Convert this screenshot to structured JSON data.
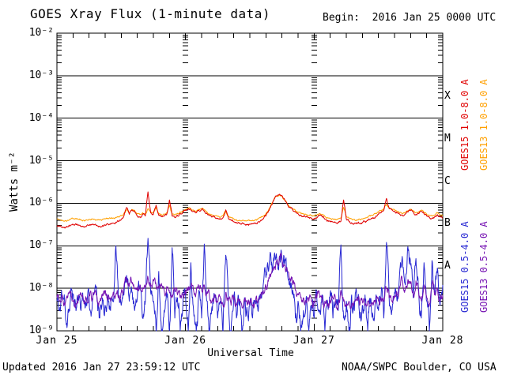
{
  "header": {
    "title": "GOES Xray Flux (1-minute data)",
    "begin_label": "Begin:  2016 Jan 25 0000 UTC"
  },
  "footer": {
    "updated": "Updated 2016 Jan 27 23:59:12 UTC",
    "source": "NOAA/SWPC Boulder, CO USA"
  },
  "chart_data": {
    "type": "line",
    "title": "GOES Xray Flux (1-minute data)",
    "xlabel": "Universal Time",
    "ylabel": "Watts m⁻²",
    "y_scale": "log",
    "y_range": [
      1e-09,
      0.01
    ],
    "y_tick_labels": [
      "10⁻²",
      "10⁻³",
      "10⁻⁴",
      "10⁻⁵",
      "10⁻⁶",
      "10⁻⁷",
      "10⁻⁸",
      "10⁻⁹"
    ],
    "y_tick_exponents": [
      -2,
      -3,
      -4,
      -5,
      -6,
      -7,
      -8,
      -9
    ],
    "x_range_hours": [
      0,
      72
    ],
    "x_start_utc": "2016 Jan 25 0000 UTC",
    "x_ticks": [
      {
        "hour": 0,
        "label": "Jan 25"
      },
      {
        "hour": 24,
        "label": "Jan 26"
      },
      {
        "hour": 48,
        "label": "Jan 27"
      },
      {
        "hour": 72,
        "label": "Jan 28"
      }
    ],
    "x_minor_tick_hours": 3,
    "grid": {
      "horizontal_decade_lines": true,
      "vertical_day_tick_columns_hours": [
        24,
        48
      ]
    },
    "flare_classes": [
      {
        "letter": "X",
        "flux_low": 0.0001,
        "flux_high": 0.001
      },
      {
        "letter": "M",
        "flux_low": 1e-05,
        "flux_high": 0.0001
      },
      {
        "letter": "C",
        "flux_low": 1e-06,
        "flux_high": 1e-05
      },
      {
        "letter": "B",
        "flux_low": 1e-07,
        "flux_high": 1e-06
      },
      {
        "letter": "A",
        "flux_low": 1e-08,
        "flux_high": 1e-07
      }
    ],
    "legend_position": "right-vertical",
    "legend": [
      {
        "text": "GOES15 1.0-8.0 A",
        "color": "#e00000",
        "column": 1,
        "row": "top"
      },
      {
        "text": "GOES13 1.0-8.0 A",
        "color": "#ffa000",
        "column": 2,
        "row": "top"
      },
      {
        "text": "GOES15 0.5-4.0 A",
        "color": "#2626d2",
        "column": 1,
        "row": "bottom"
      },
      {
        "text": "GOES13 0.5-4.0 A",
        "color": "#7512b2",
        "column": 2,
        "row": "bottom"
      }
    ],
    "series": [
      {
        "name": "GOES15 1.0-8.0 A",
        "color": "#e00000",
        "x_start": 0,
        "x_step": 0.5,
        "scale": 1e-07,
        "noise_log_amp": 0.035,
        "seed": 11,
        "values": [
          3.0,
          2.9,
          2.7,
          2.6,
          2.8,
          3.0,
          3.2,
          3.3,
          3.1,
          2.9,
          2.8,
          2.9,
          3.0,
          3.2,
          3.1,
          3.0,
          2.9,
          3.0,
          3.1,
          3.3,
          3.2,
          3.4,
          3.6,
          3.8,
          4.2,
          5.0,
          8.0,
          5.5,
          7.0,
          6.5,
          5.0,
          4.8,
          5.5,
          5.0,
          18.5,
          6.0,
          5.5,
          9.0,
          5.2,
          4.8,
          5.0,
          5.5,
          12.0,
          5.0,
          4.6,
          5.2,
          5.8,
          6.2,
          6.8,
          7.5,
          7.0,
          6.4,
          6.0,
          6.8,
          7.2,
          6.6,
          5.8,
          5.2,
          4.8,
          4.6,
          4.4,
          4.2,
          4.6,
          7.0,
          4.4,
          4.0,
          3.7,
          3.5,
          3.4,
          3.3,
          3.2,
          3.2,
          3.2,
          3.3,
          3.4,
          3.6,
          3.9,
          4.3,
          5.0,
          6.5,
          9.0,
          12.0,
          15.0,
          16.0,
          15.0,
          12.0,
          9.5,
          8.0,
          7.0,
          6.3,
          5.7,
          5.3,
          5.0,
          4.8,
          4.6,
          4.5,
          4.4,
          4.6,
          5.2,
          4.8,
          4.2,
          3.9,
          3.7,
          3.6,
          3.5,
          3.6,
          3.8,
          12.0,
          4.2,
          3.8,
          3.5,
          3.4,
          3.3,
          3.4,
          3.5,
          3.7,
          3.9,
          4.2,
          4.6,
          5.0,
          5.5,
          6.0,
          6.8,
          13.0,
          7.5,
          7.0,
          6.5,
          6.0,
          5.5,
          5.2,
          5.6,
          6.2,
          6.8,
          6.2,
          5.5,
          5.8,
          6.4,
          5.6,
          5.0,
          4.7,
          4.5,
          4.8,
          5.4,
          4.8,
          4.5
        ]
      },
      {
        "name": "GOES13 1.0-8.0 A",
        "color": "#ffa000",
        "x_start": 0,
        "x_step": 0.5,
        "scale": 1e-07,
        "noise_log_amp": 0.025,
        "seed": 22,
        "values": [
          4.2,
          4.1,
          4.0,
          3.9,
          4.0,
          4.2,
          4.3,
          4.4,
          4.2,
          4.1,
          4.0,
          4.1,
          4.2,
          4.3,
          4.2,
          4.1,
          4.1,
          4.2,
          4.3,
          4.4,
          4.4,
          4.5,
          4.6,
          4.8,
          5.2,
          5.8,
          7.0,
          6.0,
          7.2,
          6.8,
          5.6,
          5.4,
          6.0,
          5.6,
          7.5,
          6.2,
          6.0,
          8.0,
          5.8,
          5.4,
          5.6,
          6.0,
          9.0,
          5.6,
          5.2,
          5.8,
          6.3,
          6.6,
          7.2,
          7.8,
          7.4,
          6.8,
          6.4,
          7.2,
          7.5,
          7.0,
          6.2,
          5.6,
          5.3,
          5.1,
          4.9,
          4.7,
          5.1,
          6.5,
          4.9,
          4.6,
          4.3,
          4.1,
          4.0,
          3.9,
          3.9,
          3.9,
          3.9,
          4.0,
          4.1,
          4.3,
          4.6,
          5.0,
          5.7,
          7.0,
          9.5,
          12.5,
          14.5,
          15.5,
          14.5,
          11.8,
          9.6,
          8.2,
          7.3,
          6.7,
          6.2,
          5.8,
          5.6,
          5.4,
          5.2,
          5.1,
          5.0,
          5.2,
          5.7,
          5.4,
          4.9,
          4.6,
          4.4,
          4.3,
          4.2,
          4.3,
          4.5,
          8.0,
          4.9,
          4.5,
          4.3,
          4.2,
          4.1,
          4.2,
          4.3,
          4.5,
          4.7,
          5.0,
          5.3,
          5.7,
          6.1,
          6.6,
          7.3,
          9.5,
          7.9,
          7.4,
          7.0,
          6.5,
          6.0,
          5.7,
          6.1,
          6.7,
          7.2,
          6.7,
          6.0,
          6.3,
          6.9,
          6.1,
          5.5,
          5.2,
          5.0,
          5.3,
          5.9,
          5.3,
          5.0
        ]
      },
      {
        "name": "GOES15 0.5-4.0 A",
        "color": "#2626d2",
        "x_start": 0,
        "x_step": 0.5,
        "scale": 1e-09,
        "noise_log_amp": 0.32,
        "seed": 33,
        "values": [
          5,
          3,
          6,
          4,
          2,
          5,
          7,
          4,
          6,
          3,
          5,
          4,
          6,
          3,
          8,
          5,
          2,
          6,
          4,
          7,
          3,
          5,
          100,
          6,
          4,
          7,
          20,
          5,
          8,
          3,
          6,
          12,
          2,
          5,
          150,
          8,
          5,
          1,
          25,
          1,
          3,
          8,
          1,
          90,
          2,
          6,
          1,
          4,
          7,
          1,
          40,
          3,
          1,
          9,
          2,
          110,
          5,
          1,
          3,
          6,
          2,
          5,
          1,
          60,
          4,
          1,
          7,
          2,
          4,
          1,
          6,
          3,
          4,
          2,
          5,
          3,
          7,
          12,
          18,
          25,
          35,
          45,
          52,
          55,
          50,
          38,
          26,
          15,
          9,
          2,
          5,
          1,
          3,
          6,
          1,
          4,
          2,
          6,
          3,
          7,
          1,
          5,
          8,
          2,
          5,
          3,
          105,
          2,
          5,
          1,
          7,
          3,
          6,
          2,
          4,
          7,
          1,
          5,
          2,
          6,
          3,
          7,
          2,
          120,
          6,
          3,
          8,
          5,
          28,
          45,
          12,
          95,
          35,
          6,
          50,
          10,
          2,
          40,
          5,
          1,
          45,
          7,
          30,
          4,
          12
        ]
      },
      {
        "name": "GOES13 0.5-4.0 A",
        "color": "#7512b2",
        "x_start": 0,
        "x_step": 0.5,
        "scale": 1e-09,
        "noise_log_amp": 0.16,
        "seed": 44,
        "values": [
          6,
          5,
          7,
          4,
          6,
          8,
          5,
          4,
          6,
          7,
          5,
          6,
          7,
          5,
          8,
          6,
          5,
          7,
          9,
          6,
          5,
          8,
          7,
          6,
          8,
          10,
          15,
          11,
          14,
          10,
          9,
          12,
          10,
          11,
          18,
          13,
          16,
          12,
          10,
          13,
          9,
          11,
          8,
          7,
          9,
          7,
          6,
          7,
          8,
          9,
          11,
          9,
          8,
          10,
          9,
          12,
          8,
          6,
          5,
          7,
          5,
          6,
          4,
          8,
          5,
          4,
          6,
          4,
          5,
          4,
          5,
          4,
          5,
          4,
          5,
          5,
          6,
          9,
          12,
          16,
          22,
          32,
          44,
          50,
          45,
          36,
          26,
          17,
          12,
          9,
          7,
          6,
          6,
          5,
          5,
          5,
          5,
          6,
          7,
          6,
          5,
          4,
          5,
          6,
          5,
          4,
          9,
          5,
          4,
          5,
          4,
          5,
          6,
          4,
          5,
          4,
          5,
          4,
          4,
          5,
          5,
          6,
          5,
          10,
          6,
          5,
          6,
          7,
          11,
          15,
          9,
          16,
          13,
          7,
          15,
          8,
          5,
          12,
          6,
          4,
          13,
          7,
          10,
          5,
          7
        ]
      }
    ]
  }
}
